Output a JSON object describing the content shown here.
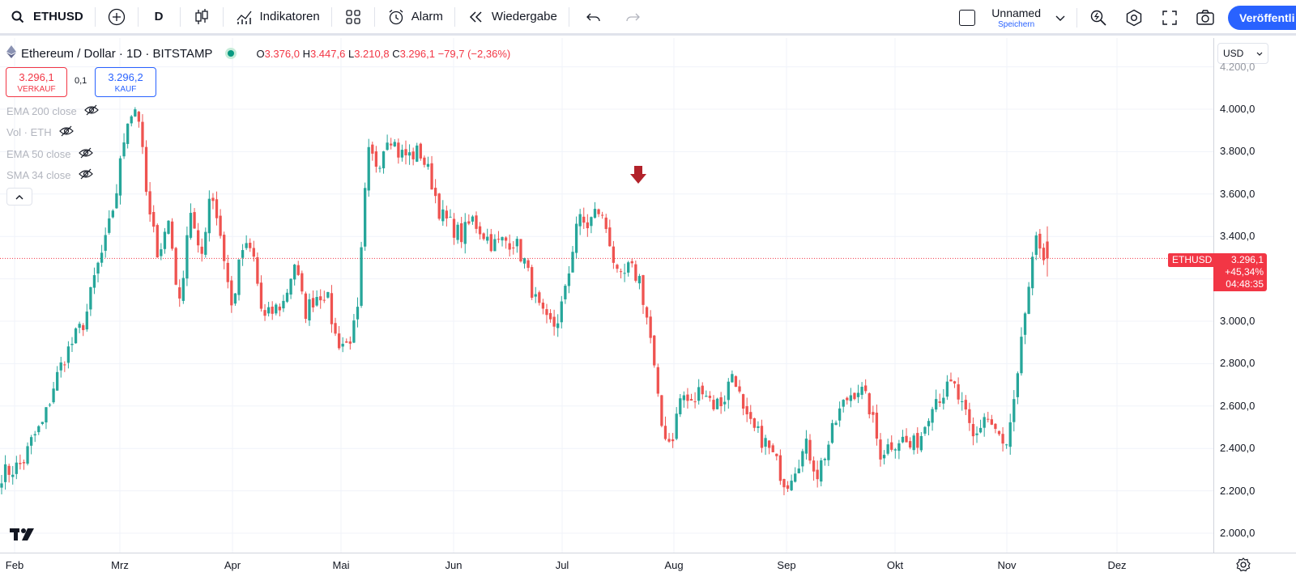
{
  "toolbar": {
    "symbol": "ETHUSD",
    "interval": "D",
    "indicators_label": "Indikatoren",
    "alert_label": "Alarm",
    "replay_label": "Wiedergabe",
    "layout_name": "Unnamed",
    "layout_sub": "Speichern",
    "publish_label": "Veröffentli"
  },
  "legend": {
    "title": "Ethereum / Dollar · 1D · BITSTAMP",
    "o_label": "O",
    "o_value": "3.376,0",
    "h_label": "H",
    "h_value": "3.447,6",
    "l_label": "L",
    "l_value": "3.210,8",
    "c_label": "C",
    "c_value": "3.296,1",
    "change": "−79,7 (−2,36%)"
  },
  "trade": {
    "sell_price": "3.296,1",
    "sell_label": "VERKAUF",
    "spread": "0,1",
    "buy_price": "3.296,2",
    "buy_label": "KAUF"
  },
  "indicators": [
    "EMA 200 close",
    "Vol · ETH",
    "EMA 50 close",
    "SMA 34 close"
  ],
  "currency": "USD",
  "price_axis": [
    "4.200,0",
    "4.000,0",
    "3.800,0",
    "3.600,0",
    "3.400,0",
    "3.000,0",
    "2.800,0",
    "2.600,0",
    "2.400,0",
    "2.200,0",
    "2.000,0"
  ],
  "price_tag": {
    "symbol": "ETHUSD",
    "price": "3.296,1",
    "change_pct": "+45,34%",
    "countdown": "04:48:35"
  },
  "time_axis": [
    "Feb",
    "Mrz",
    "Apr",
    "Mai",
    "Jun",
    "Jul",
    "Aug",
    "Sep",
    "Okt",
    "Nov",
    "Dez"
  ],
  "colors": {
    "up": "#26a69a",
    "down": "#ef5350",
    "accent": "#2962ff",
    "marker": "#b2222a"
  },
  "chart_data": {
    "type": "candlestick",
    "symbol": "ETHUSD",
    "interval": "1D",
    "ylim": [
      1900,
      4250
    ],
    "months": [
      "Feb",
      "Mrz",
      "Apr",
      "Mai",
      "Jun",
      "Jul",
      "Aug",
      "Sep",
      "Okt",
      "Nov",
      "Dez"
    ],
    "close_path": [
      2280,
      2300,
      2330,
      2450,
      2520,
      2700,
      2830,
      2920,
      3010,
      3230,
      3380,
      3620,
      3960,
      4020,
      3520,
      3320,
      3480,
      3060,
      3550,
      3260,
      3640,
      3390,
      3060,
      3340,
      3330,
      3000,
      3050,
      3090,
      3280,
      3040,
      3120,
      3140,
      2910,
      2890,
      3000,
      3790,
      3740,
      3900,
      3790,
      3780,
      3800,
      3680,
      3500,
      3450,
      3400,
      3480,
      3420,
      3360,
      3380,
      3380,
      3280,
      3100,
      2990,
      2980,
      3150,
      3480,
      3450,
      3530,
      3420,
      3170,
      3250,
      3200,
      2940,
      2520,
      2420,
      2660,
      2600,
      2700,
      2610,
      2620,
      2780,
      2540,
      2480,
      2430,
      2340,
      2230,
      2330,
      2410,
      2280,
      2410,
      2560,
      2650,
      2690,
      2590,
      2380,
      2420,
      2450,
      2400,
      2470,
      2630,
      2660,
      2700,
      2570,
      2430,
      2560,
      2490,
      2380,
      2650,
      3100,
      3380,
      3296
    ],
    "last": {
      "open": 3376.0,
      "high": 3447.6,
      "low": 3210.8,
      "close": 3296.1,
      "change": -79.7,
      "change_pct": -2.36
    }
  }
}
